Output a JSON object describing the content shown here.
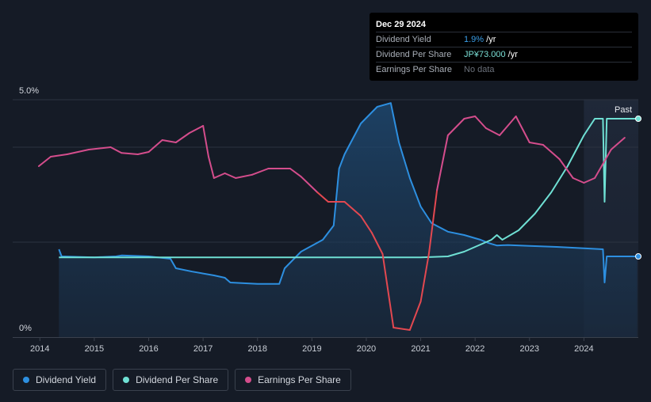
{
  "tooltip": {
    "date": "Dec 29 2024",
    "rows": [
      {
        "label": "Dividend Yield",
        "value": "1.9%",
        "unit": " /yr"
      },
      {
        "label": "Dividend Per Share",
        "value": "JP¥73.000",
        "unit": " /yr"
      },
      {
        "label": "Earnings Per Share",
        "value": "No data",
        "unit": ""
      }
    ]
  },
  "legend": [
    {
      "label": "Dividend Yield",
      "color": "#2d8fe0"
    },
    {
      "label": "Dividend Per Share",
      "color": "#6fe0d4"
    },
    {
      "label": "Earnings Per Share",
      "color": "#d44d8c"
    }
  ],
  "chart_data": {
    "type": "line",
    "title": "",
    "y_axis_labels": [
      "5.0%",
      "0%"
    ],
    "ylim": [
      0,
      5.0
    ],
    "xlim": [
      2013.5,
      2025.0
    ],
    "x_ticks": [
      2014,
      2015,
      2016,
      2017,
      2018,
      2019,
      2020,
      2021,
      2022,
      2023,
      2024
    ],
    "past_label": "Past",
    "past_start": 2024.0,
    "series": [
      {
        "name": "Dividend Yield",
        "unit": "%",
        "color": "#2d8fe0",
        "filled": true,
        "x": [
          2014.35,
          2014.4,
          2015.0,
          2015.4,
          2015.5,
          2016.0,
          2016.4,
          2016.5,
          2016.8,
          2017.2,
          2017.4,
          2017.5,
          2018.0,
          2018.4,
          2018.5,
          2018.8,
          2019.2,
          2019.4,
          2019.5,
          2019.6,
          2019.9,
          2020.2,
          2020.45,
          2020.6,
          2020.8,
          2021.0,
          2021.2,
          2021.5,
          2021.8,
          2022.1,
          2022.25,
          2022.4,
          2022.6,
          2023.0,
          2023.5,
          2024.0,
          2024.35,
          2024.38,
          2024.42,
          2024.5,
          2024.75,
          2024.98
        ],
        "values": [
          1.85,
          1.7,
          1.68,
          1.7,
          1.72,
          1.7,
          1.65,
          1.45,
          1.38,
          1.3,
          1.25,
          1.15,
          1.12,
          1.12,
          1.45,
          1.8,
          2.05,
          2.35,
          3.55,
          3.85,
          4.5,
          4.85,
          4.93,
          4.1,
          3.35,
          2.75,
          2.4,
          2.22,
          2.15,
          2.05,
          1.98,
          1.93,
          1.94,
          1.92,
          1.9,
          1.87,
          1.85,
          1.15,
          1.7,
          1.7,
          1.7,
          1.7
        ]
      },
      {
        "name": "Dividend Per Share",
        "unit": "JP¥",
        "color": "#6fe0d4",
        "filled": false,
        "x": [
          2014.35,
          2015.0,
          2016.0,
          2017.0,
          2018.0,
          2019.0,
          2020.0,
          2021.0,
          2021.5,
          2021.8,
          2022.0,
          2022.3,
          2022.4,
          2022.5,
          2022.8,
          2023.1,
          2023.4,
          2023.7,
          2024.0,
          2024.2,
          2024.35,
          2024.38,
          2024.42,
          2024.5,
          2024.98
        ],
        "values": [
          1.68,
          1.68,
          1.68,
          1.68,
          1.68,
          1.68,
          1.68,
          1.68,
          1.7,
          1.8,
          1.9,
          2.05,
          2.15,
          2.05,
          2.25,
          2.6,
          3.05,
          3.6,
          4.25,
          4.6,
          4.6,
          2.85,
          4.6,
          4.6,
          4.6
        ]
      },
      {
        "name": "Earnings Per Share",
        "unit": "JP¥",
        "color": "#d44d8c",
        "segment_colors": {
          "positive": "#d44d8c",
          "negative": "#e34850"
        },
        "filled": false,
        "x": [
          2013.98,
          2014.2,
          2014.5,
          2014.9,
          2015.3,
          2015.5,
          2015.8,
          2016.0,
          2016.25,
          2016.5,
          2016.75,
          2017.0,
          2017.1,
          2017.2,
          2017.4,
          2017.6,
          2017.9,
          2018.2,
          2018.6,
          2018.8,
          2019.1,
          2019.3,
          2019.6,
          2019.9,
          2020.1,
          2020.3,
          2020.5,
          2020.8,
          2021.0,
          2021.15,
          2021.3,
          2021.5,
          2021.8,
          2022.0,
          2022.2,
          2022.45,
          2022.75,
          2023.0,
          2023.25,
          2023.55,
          2023.8,
          2024.0,
          2024.2,
          2024.5,
          2024.75
        ],
        "values": [
          3.6,
          3.8,
          3.85,
          3.95,
          4.0,
          3.88,
          3.85,
          3.9,
          4.15,
          4.1,
          4.3,
          4.45,
          3.8,
          3.35,
          3.45,
          3.35,
          3.42,
          3.55,
          3.55,
          3.38,
          3.05,
          2.85,
          2.85,
          2.55,
          2.2,
          1.75,
          0.2,
          0.15,
          0.75,
          1.75,
          3.1,
          4.25,
          4.6,
          4.65,
          4.4,
          4.25,
          4.65,
          4.1,
          4.05,
          3.75,
          3.35,
          3.25,
          3.35,
          3.95,
          4.2
        ]
      }
    ]
  }
}
